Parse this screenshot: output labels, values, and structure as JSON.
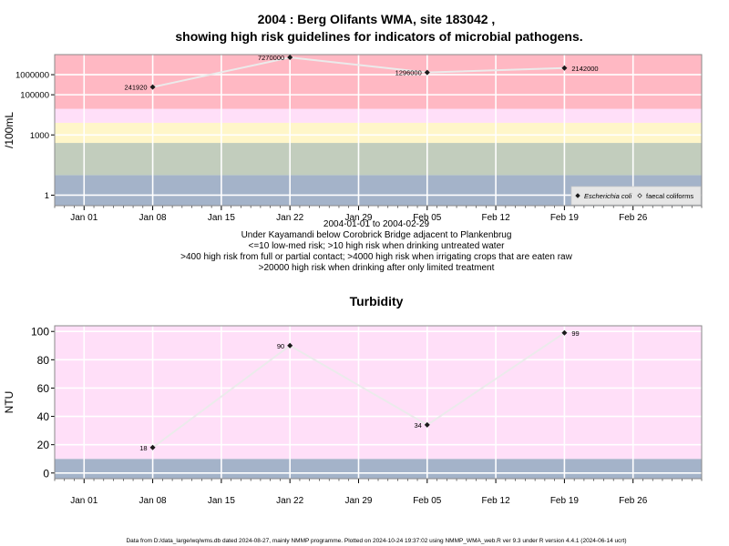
{
  "figure": {
    "title_line1": "2004 : Berg Olifants WMA, site 183042 ,",
    "title_line2": "showing high risk guidelines for indicators of microbial pathogens.",
    "caption_lines": [
      "2004-01-01 to 2004-02-29",
      "Under Kayamandi below Corobrick Bridge adjacent to Plankenbrug",
      "<=10 low-med risk; >10 high risk when drinking untreated water",
      ">400 high risk from full or partial contact; >4000 high risk when irrigating crops that are eaten raw",
      ">20000 high risk when drinking after only limited treatment"
    ],
    "footer": "Data from D:/data_large/wq/wms.db dated 2024-08-27, mainly NMMP programme. Plotted on 2024-10-24 19:37:02 using NMMP_WMA_web.R ver 9.3 under R version 4.4.1 (2024-06-14 ucrt)"
  },
  "chart_data": [
    {
      "type": "line",
      "title": "",
      "xlabel": "",
      "ylabel": "/100mL",
      "y_scale": "log",
      "x_ticks": [
        "Jan 01",
        "Jan 08",
        "Jan 15",
        "Jan 22",
        "Jan 29",
        "Feb 05",
        "Feb 12",
        "Feb 19",
        "Feb 26"
      ],
      "y_ticks": [
        1,
        1000,
        100000,
        1000000
      ],
      "y_tick_labels": [
        "1",
        "1000",
        "100000",
        "1000000"
      ],
      "x_range": [
        "2003-12-29",
        "2004-03-04"
      ],
      "y_range": [
        0.3,
        10000000
      ],
      "grid": true,
      "legend_position": "bottom-right",
      "legend": [
        {
          "label": "Escherichia coli",
          "marker": "filled-diamond"
        },
        {
          "label": "faecal coliforms",
          "marker": "open-diamond"
        }
      ],
      "bands": [
        {
          "from": 0.3,
          "to": 10,
          "color": "#a4b3c9"
        },
        {
          "from": 10,
          "to": 400,
          "color": "#c2cdbd"
        },
        {
          "from": 400,
          "to": 4000,
          "color": "#fff6c9"
        },
        {
          "from": 4000,
          "to": 20000,
          "color": "#ffdff8"
        },
        {
          "from": 20000,
          "to": 10000000,
          "color": "#ffb8c3"
        }
      ],
      "series": [
        {
          "name": "Escherichia coli",
          "color": "#ebebeb",
          "x": [
            "2004-01-08",
            "2004-01-22",
            "2004-02-05",
            "2004-02-19"
          ],
          "y": [
            241920,
            7270000,
            1296000,
            2142000
          ],
          "labels": [
            "241920",
            "7270000",
            "1296000",
            "2142000"
          ]
        }
      ]
    },
    {
      "type": "line",
      "title": "Turbidity",
      "xlabel": "",
      "ylabel": "NTU",
      "y_scale": "linear",
      "x_ticks": [
        "Jan 01",
        "Jan 08",
        "Jan 15",
        "Jan 22",
        "Jan 29",
        "Feb 05",
        "Feb 12",
        "Feb 19",
        "Feb 26"
      ],
      "y_ticks": [
        0,
        20,
        40,
        60,
        80,
        100
      ],
      "y_tick_labels": [
        "0",
        "20",
        "40",
        "60",
        "80",
        "100"
      ],
      "x_range": [
        "2003-12-29",
        "2004-03-04"
      ],
      "y_range": [
        -4,
        104
      ],
      "grid": true,
      "bands": [
        {
          "from": -4,
          "to": 10,
          "color": "#a4b3c9"
        },
        {
          "from": 10,
          "to": 104,
          "color": "#ffdff8"
        }
      ],
      "series": [
        {
          "name": "",
          "color": "#ebebeb",
          "x": [
            "2004-01-08",
            "2004-01-22",
            "2004-02-05",
            "2004-02-19"
          ],
          "y": [
            18,
            90,
            34,
            99
          ],
          "labels": [
            "18",
            "90",
            "34",
            "99"
          ]
        }
      ]
    }
  ]
}
